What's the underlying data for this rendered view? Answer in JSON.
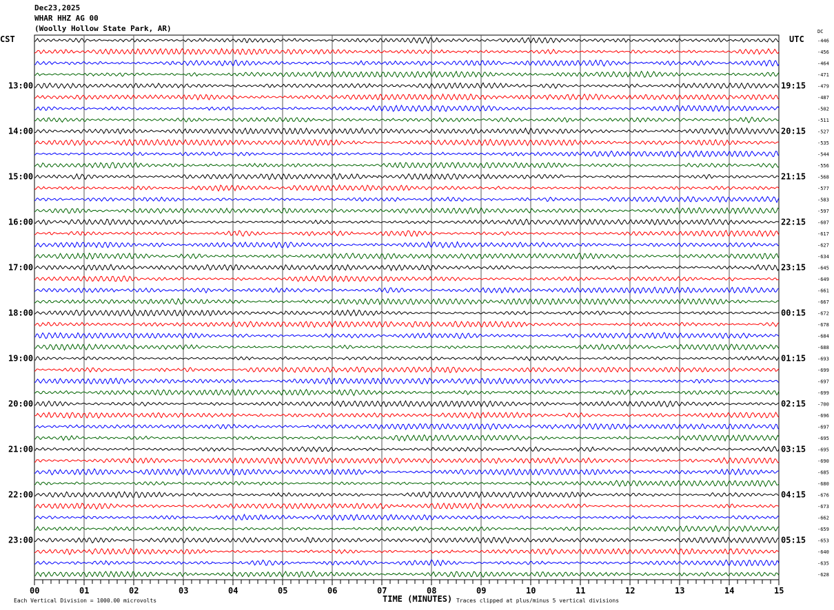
{
  "header": {
    "date": "Dec23,2025",
    "station": "WHAR HHZ AG 00",
    "location": "(Woolly Hollow State Park, AR)"
  },
  "chart_data": {
    "type": "line",
    "title": "Dec23,2025 WHAR HHZ AG 00 (Woolly Hollow State Park, AR)",
    "xlabel": "TIME (MINUTES)",
    "xlim": [
      0,
      15
    ],
    "x_ticks": [
      "00",
      "01",
      "02",
      "03",
      "04",
      "05",
      "06",
      "07",
      "08",
      "09",
      "10",
      "11",
      "12",
      "13",
      "14",
      "15"
    ],
    "left_axis_label": "CST",
    "right_axis_label": "UTC",
    "dc_label": "DC",
    "grid": "vertical lines every minute",
    "trace_colors": [
      "#000000",
      "#ff0000",
      "#0000ff",
      "#006400"
    ],
    "left_hour_labels": [
      "",
      "13:00",
      "14:00",
      "15:00",
      "16:00",
      "17:00",
      "18:00",
      "19:00",
      "20:00",
      "21:00",
      "22:00",
      "23:00"
    ],
    "right_hour_labels": [
      "",
      "19:15",
      "20:15",
      "21:15",
      "22:15",
      "23:15",
      "00:15",
      "01:15",
      "02:15",
      "03:15",
      "04:15",
      "05:15"
    ],
    "dc_offsets": [
      "-446",
      "-456",
      "-464",
      "-471",
      "-479",
      "-487",
      "-502",
      "-511",
      "-527",
      "-535",
      "-544",
      "-556",
      "-568",
      "-577",
      "-583",
      "-597",
      "-607",
      "-617",
      "-627",
      "-634",
      "-645",
      "-649",
      "-661",
      "-667",
      "-672",
      "-678",
      "-684",
      "-688",
      "-693",
      "-699",
      "-697",
      "-699",
      "-700",
      "-696",
      "-697",
      "-695",
      "-695",
      "-690",
      "-685",
      "-680",
      "-676",
      "-673",
      "-662",
      "-659",
      "-653",
      "-640",
      "-635",
      "-628"
    ],
    "scale_note": "Each Vertical Division = 1000.00 microvolts",
    "clip_note": "Traces clipped at plus/minus 5 vertical divisions"
  }
}
